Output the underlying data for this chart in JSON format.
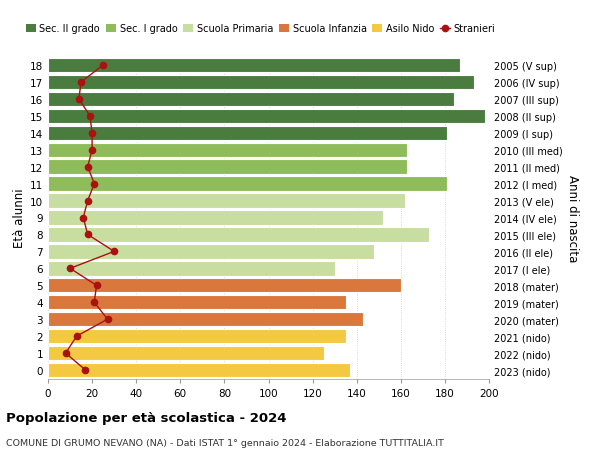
{
  "ages": [
    0,
    1,
    2,
    3,
    4,
    5,
    6,
    7,
    8,
    9,
    10,
    11,
    12,
    13,
    14,
    15,
    16,
    17,
    18
  ],
  "right_labels": [
    "2023 (nido)",
    "2022 (nido)",
    "2021 (nido)",
    "2020 (mater)",
    "2019 (mater)",
    "2018 (mater)",
    "2017 (I ele)",
    "2016 (II ele)",
    "2015 (III ele)",
    "2014 (IV ele)",
    "2013 (V ele)",
    "2012 (I med)",
    "2011 (II med)",
    "2010 (III med)",
    "2009 (I sup)",
    "2008 (II sup)",
    "2007 (III sup)",
    "2006 (IV sup)",
    "2005 (V sup)"
  ],
  "bar_values": [
    137,
    125,
    135,
    143,
    135,
    160,
    130,
    148,
    173,
    152,
    162,
    181,
    163,
    163,
    181,
    198,
    184,
    193,
    187
  ],
  "stranieri_values": [
    17,
    8,
    13,
    27,
    21,
    22,
    10,
    30,
    18,
    16,
    18,
    21,
    18,
    20,
    20,
    19,
    14,
    15,
    25
  ],
  "bar_colors": [
    "#f5c842",
    "#f5c842",
    "#f5c842",
    "#d9773d",
    "#d9773d",
    "#d9773d",
    "#c8dda0",
    "#c8dda0",
    "#c8dda0",
    "#c8dda0",
    "#c8dda0",
    "#8fbc5a",
    "#8fbc5a",
    "#8fbc5a",
    "#4a7c3f",
    "#4a7c3f",
    "#4a7c3f",
    "#4a7c3f",
    "#4a7c3f"
  ],
  "legend_labels": [
    "Sec. II grado",
    "Sec. I grado",
    "Scuola Primaria",
    "Scuola Infanzia",
    "Asilo Nido",
    "Stranieri"
  ],
  "legend_colors": [
    "#4a7c3f",
    "#8fbc5a",
    "#c8dda0",
    "#d9773d",
    "#f5c842",
    "#cc2222"
  ],
  "stranieri_color": "#aa1111",
  "xlabel": "",
  "ylabel": "Età alunni",
  "right_ylabel": "Anni di nascita",
  "title": "Popolazione per età scolastica - 2024",
  "subtitle": "COMUNE DI GRUMO NEVANO (NA) - Dati ISTAT 1° gennaio 2024 - Elaborazione TUTTITALIA.IT",
  "xlim": [
    0,
    200
  ],
  "xticks": [
    0,
    20,
    40,
    60,
    80,
    100,
    120,
    140,
    160,
    180,
    200
  ],
  "bg_color": "#ffffff",
  "grid_color": "#cccccc"
}
